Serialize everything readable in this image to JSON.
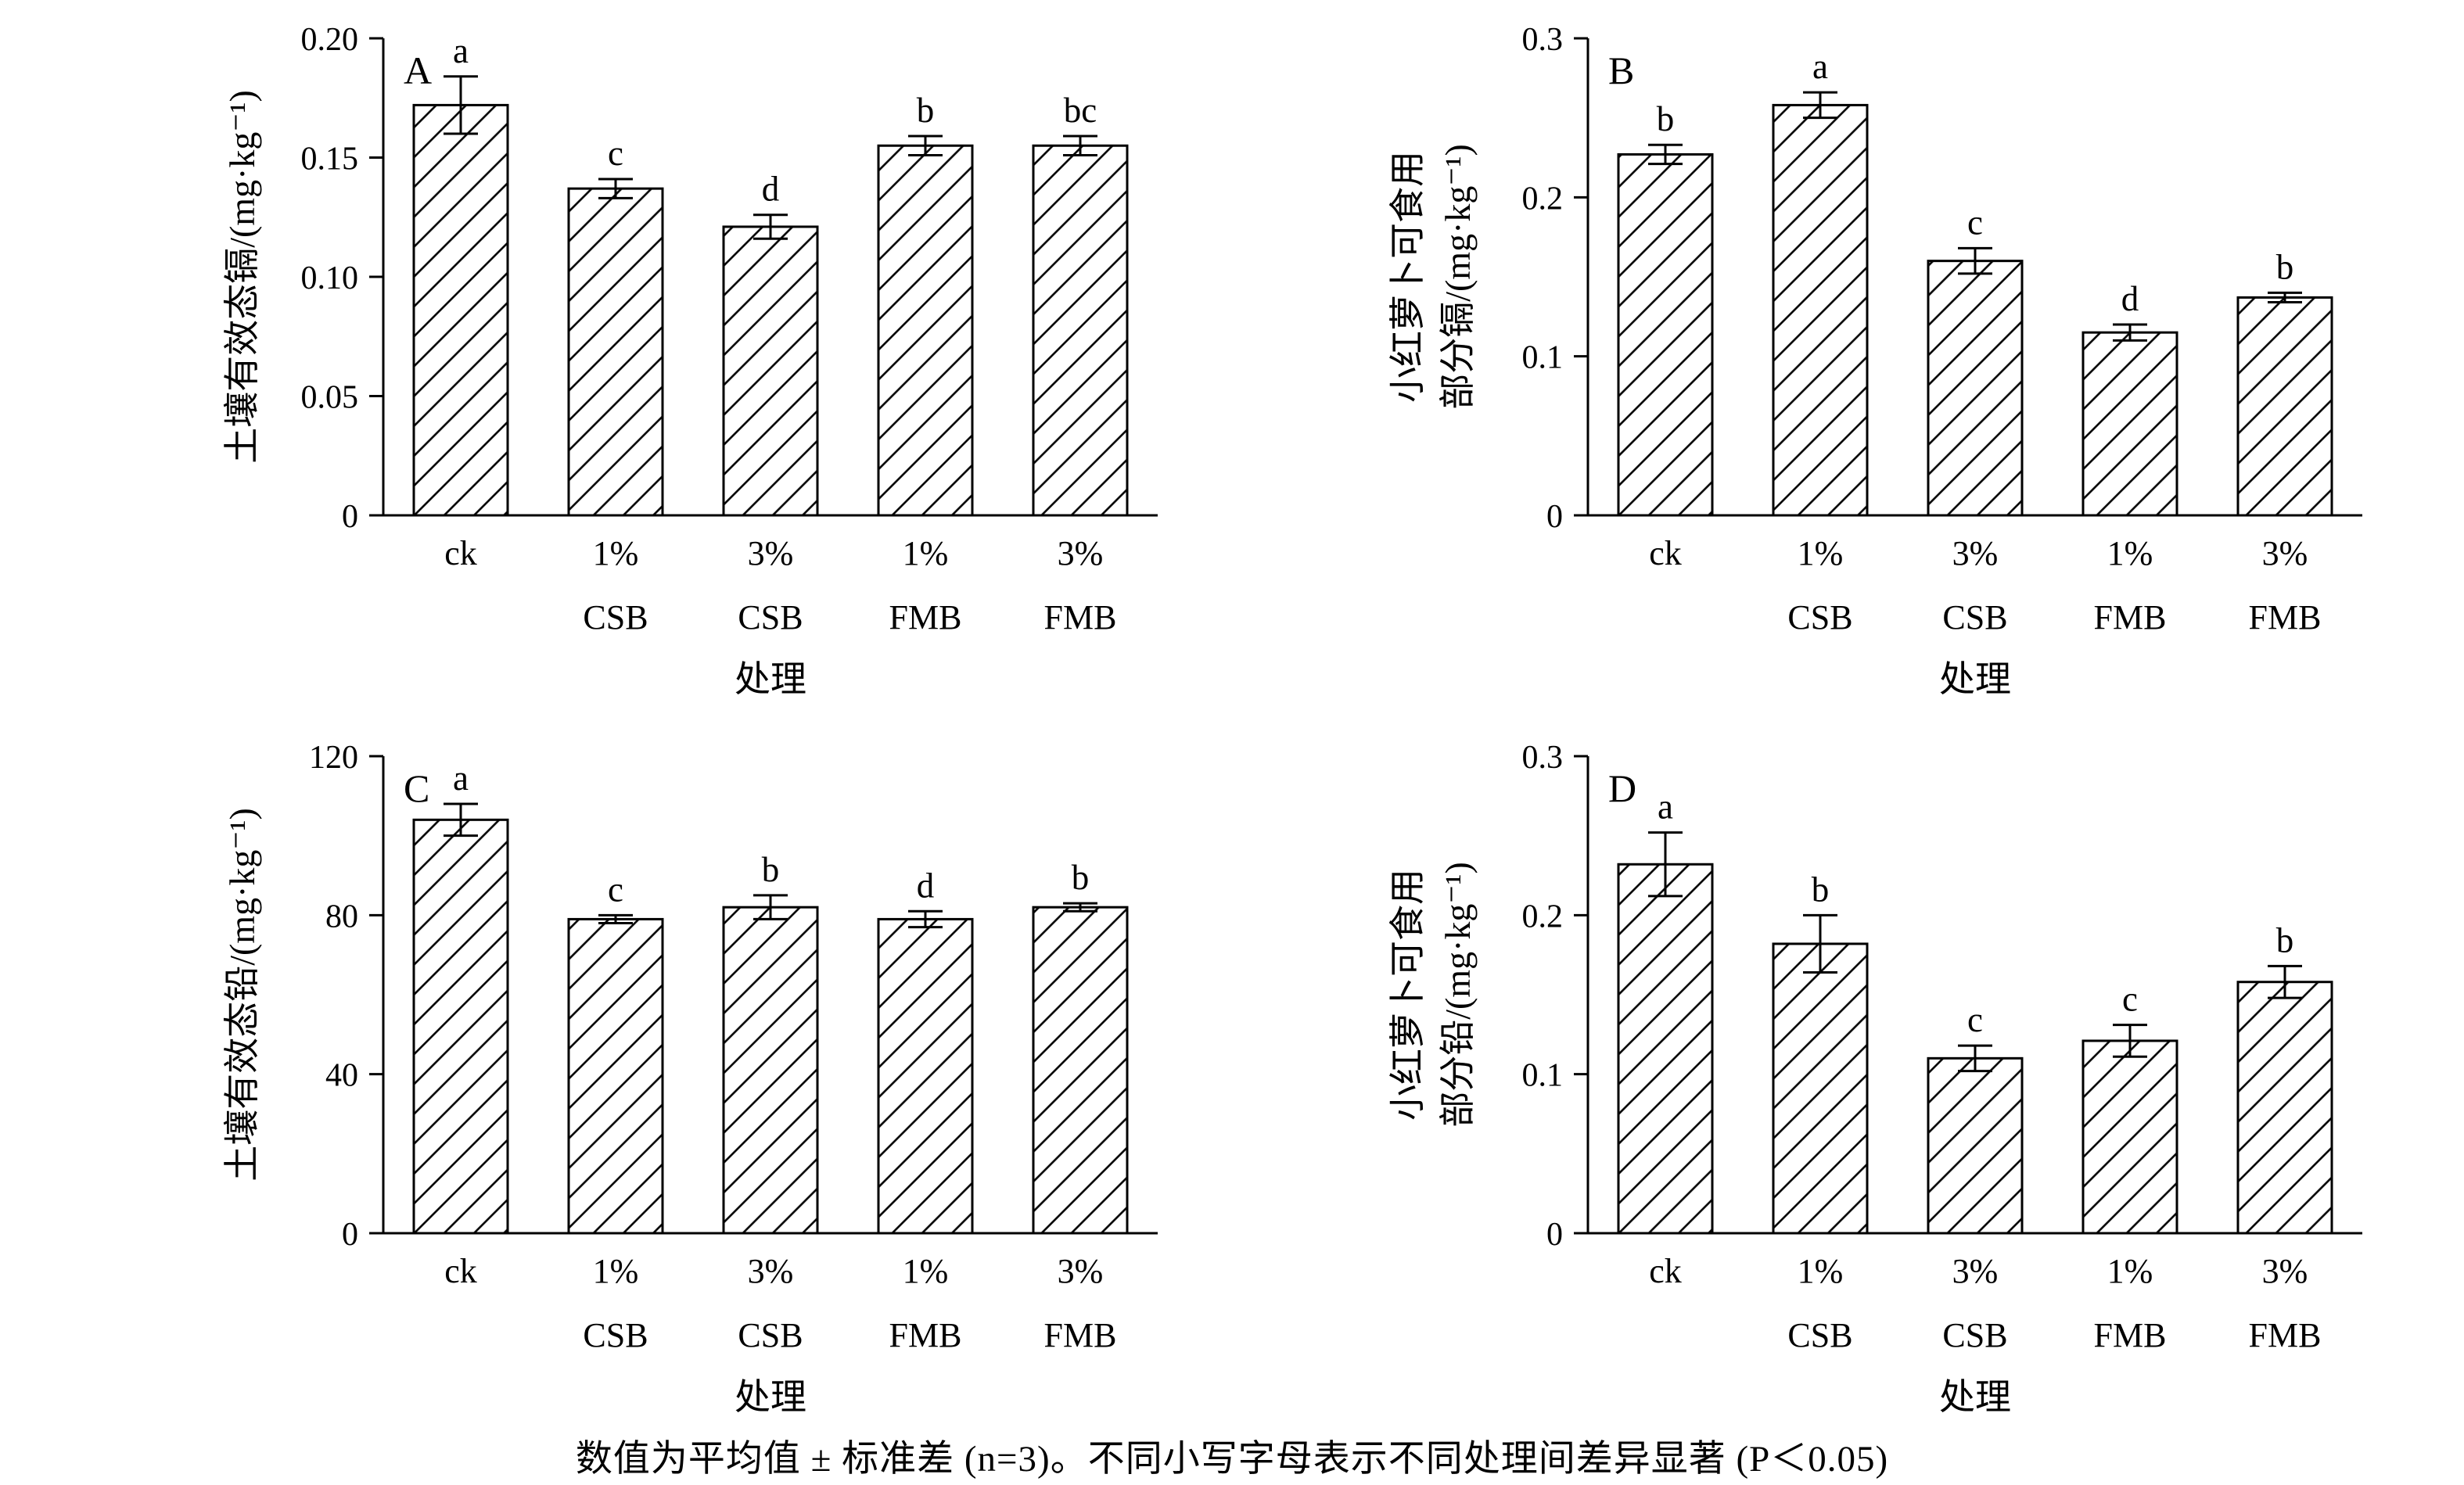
{
  "figure": {
    "footnote": "数值为平均值 ± 标准差 (n=3)。不同小写字母表示不同处理间差异显著 (P＜0.05)",
    "ink_color": "#000000",
    "background_color": "#ffffff"
  },
  "chart_data": [
    {
      "type": "bar",
      "panel_label": "A",
      "ylabel_lines": [
        "土壤有效态镉/(mg·kg⁻¹)"
      ],
      "xlabel": "处理",
      "categories": [
        "ck",
        "1% CSB",
        "3% CSB",
        "1% FMB",
        "3% FMB"
      ],
      "categories_line1": [
        "ck",
        "1%",
        "3%",
        "1%",
        "3%"
      ],
      "categories_line2": [
        "",
        "CSB",
        "CSB",
        "FMB",
        "FMB"
      ],
      "values": [
        0.172,
        0.137,
        0.121,
        0.155,
        0.155
      ],
      "errors": [
        0.012,
        0.004,
        0.005,
        0.004,
        0.004
      ],
      "sig_letters": [
        "a",
        "c",
        "d",
        "b",
        "bc"
      ],
      "ylim": [
        0,
        0.2
      ],
      "yticks": [
        0,
        0.05,
        0.1,
        0.15,
        0.2
      ],
      "ytick_labels": [
        "0",
        "0.05",
        "0.10",
        "0.15",
        "0.20"
      ],
      "grid": false,
      "bar_style": "diagonal-hatch"
    },
    {
      "type": "bar",
      "panel_label": "B",
      "ylabel_lines": [
        "小红萝卜可食用",
        "部分镉/(mg·kg⁻¹)"
      ],
      "xlabel": "处理",
      "categories": [
        "ck",
        "1% CSB",
        "3% CSB",
        "1% FMB",
        "3% FMB"
      ],
      "categories_line1": [
        "ck",
        "1%",
        "3%",
        "1%",
        "3%"
      ],
      "categories_line2": [
        "",
        "CSB",
        "CSB",
        "FMB",
        "FMB"
      ],
      "values": [
        0.227,
        0.258,
        0.16,
        0.115,
        0.137
      ],
      "errors": [
        0.006,
        0.008,
        0.008,
        0.005,
        0.003
      ],
      "sig_letters": [
        "b",
        "a",
        "c",
        "d",
        "b"
      ],
      "ylim": [
        0,
        0.3
      ],
      "yticks": [
        0,
        0.1,
        0.2,
        0.3
      ],
      "ytick_labels": [
        "0",
        "0.1",
        "0.2",
        "0.3"
      ],
      "grid": false,
      "bar_style": "diagonal-hatch"
    },
    {
      "type": "bar",
      "panel_label": "C",
      "ylabel_lines": [
        "土壤有效态铅/(mg·kg⁻¹)"
      ],
      "xlabel": "处理",
      "categories": [
        "ck",
        "1% CSB",
        "3% CSB",
        "1% FMB",
        "3% FMB"
      ],
      "categories_line1": [
        "ck",
        "1%",
        "3%",
        "1%",
        "3%"
      ],
      "categories_line2": [
        "",
        "CSB",
        "CSB",
        "FMB",
        "FMB"
      ],
      "values": [
        104,
        79,
        82,
        79,
        82
      ],
      "errors": [
        4,
        1,
        3,
        2,
        1
      ],
      "sig_letters": [
        "a",
        "c",
        "b",
        "d",
        "b"
      ],
      "ylim": [
        0,
        120
      ],
      "yticks": [
        0,
        40,
        80,
        120
      ],
      "ytick_labels": [
        "0",
        "40",
        "80",
        "120"
      ],
      "grid": false,
      "bar_style": "diagonal-hatch"
    },
    {
      "type": "bar",
      "panel_label": "D",
      "ylabel_lines": [
        "小红萝卜可食用",
        "部分铅/(mg·kg⁻¹)"
      ],
      "xlabel": "处理",
      "categories": [
        "ck",
        "1% CSB",
        "3% CSB",
        "1% FMB",
        "3% FMB"
      ],
      "categories_line1": [
        "ck",
        "1%",
        "3%",
        "1%",
        "3%"
      ],
      "categories_line2": [
        "",
        "CSB",
        "CSB",
        "FMB",
        "FMB"
      ],
      "values": [
        0.232,
        0.182,
        0.11,
        0.121,
        0.158
      ],
      "errors": [
        0.02,
        0.018,
        0.008,
        0.01,
        0.01
      ],
      "sig_letters": [
        "a",
        "b",
        "c",
        "c",
        "b"
      ],
      "ylim": [
        0,
        0.3
      ],
      "yticks": [
        0,
        0.1,
        0.2,
        0.3
      ],
      "ytick_labels": [
        "0",
        "0.1",
        "0.2",
        "0.3"
      ],
      "grid": false,
      "bar_style": "diagonal-hatch"
    }
  ]
}
